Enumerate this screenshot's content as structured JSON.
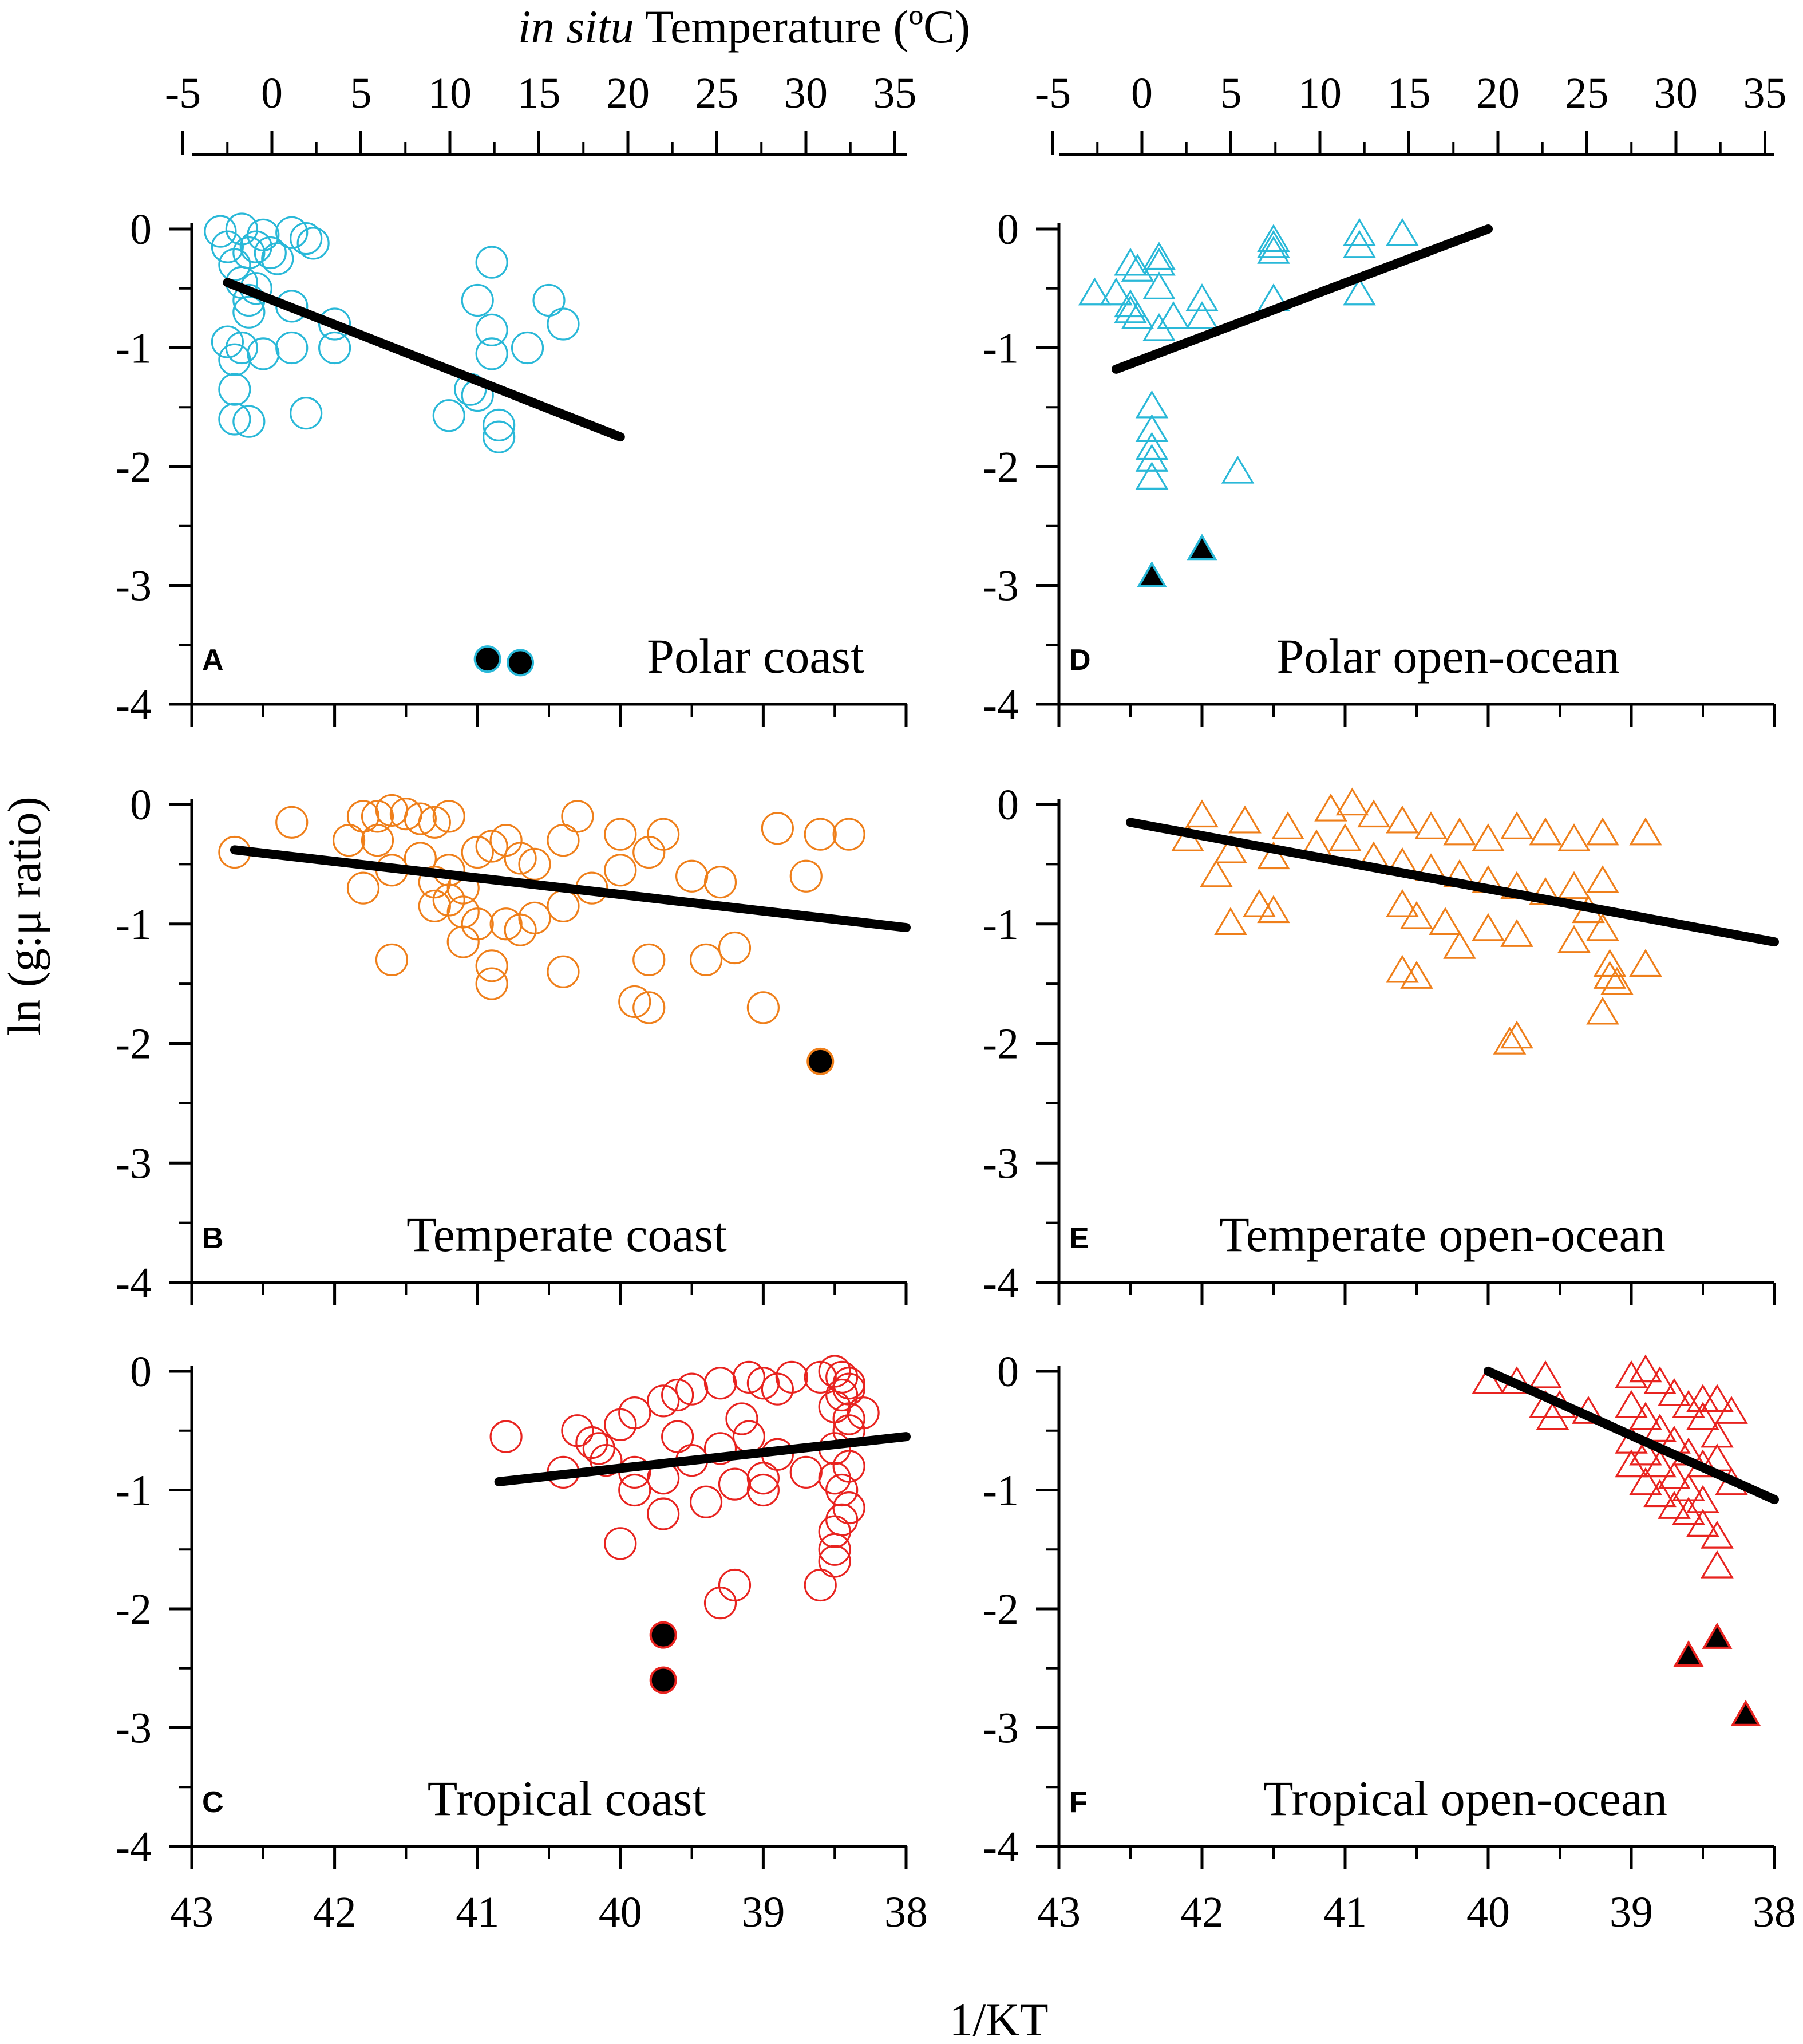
{
  "figure": {
    "top_axis_title_italic": "in situ",
    "top_axis_title_rest": " Temperature (ºC)",
    "y_axis_title": "ln (g:μ ratio)",
    "x_axis_title": "1/KT"
  },
  "colors": {
    "polar": "#29b8d8",
    "temperate": "#ef7f1a",
    "tropical": "#e8231f",
    "regression": "#000000",
    "outlier_fill": "#000000"
  },
  "chart_data": [
    {
      "id": "A",
      "type": "scatter",
      "title": "Polar coast",
      "marker": "circle",
      "group": "polar",
      "ylim": [
        -4,
        0
      ],
      "xlim": [
        43,
        38
      ],
      "points": [
        [
          42.8,
          -0.02
        ],
        [
          42.65,
          0.0
        ],
        [
          42.5,
          -0.05
        ],
        [
          42.3,
          -0.03
        ],
        [
          42.2,
          -0.08
        ],
        [
          42.15,
          -0.12
        ],
        [
          42.75,
          -0.15
        ],
        [
          42.6,
          -0.2
        ],
        [
          42.55,
          -0.15
        ],
        [
          42.4,
          -0.25
        ],
        [
          42.45,
          -0.2
        ],
        [
          42.7,
          -0.3
        ],
        [
          42.65,
          -0.45
        ],
        [
          42.55,
          -0.5
        ],
        [
          42.6,
          -0.6
        ],
        [
          42.3,
          -0.65
        ],
        [
          42.6,
          -0.7
        ],
        [
          42.75,
          -0.95
        ],
        [
          42.65,
          -1.0
        ],
        [
          42.5,
          -1.05
        ],
        [
          42.7,
          -1.1
        ],
        [
          42.3,
          -1.0
        ],
        [
          42.0,
          -0.8
        ],
        [
          42.0,
          -1.0
        ],
        [
          42.7,
          -1.35
        ],
        [
          42.7,
          -1.6
        ],
        [
          42.6,
          -1.62
        ],
        [
          42.2,
          -1.55
        ],
        [
          40.9,
          -0.28
        ],
        [
          41.0,
          -0.6
        ],
        [
          40.9,
          -0.85
        ],
        [
          40.9,
          -1.05
        ],
        [
          40.65,
          -1.0
        ],
        [
          40.5,
          -0.6
        ],
        [
          40.4,
          -0.8
        ],
        [
          41.2,
          -1.57
        ],
        [
          41.05,
          -1.35
        ],
        [
          41.0,
          -1.4
        ],
        [
          40.85,
          -1.65
        ],
        [
          40.85,
          -1.75
        ]
      ],
      "outliers": [
        [
          40.93,
          -3.62
        ],
        [
          40.7,
          -3.65
        ]
      ],
      "fit": [
        [
          42.75,
          -0.45
        ],
        [
          40.0,
          -1.75
        ]
      ]
    },
    {
      "id": "D",
      "type": "scatter",
      "title": "Polar open-ocean",
      "marker": "triangle",
      "group": "polar",
      "ylim": [
        -4,
        0
      ],
      "xlim": [
        43,
        38
      ],
      "points": [
        [
          42.75,
          -0.55
        ],
        [
          42.6,
          -0.55
        ],
        [
          42.5,
          -0.3
        ],
        [
          42.45,
          -0.35
        ],
        [
          42.3,
          -0.25
        ],
        [
          42.3,
          -0.3
        ],
        [
          42.5,
          -0.7
        ],
        [
          42.45,
          -0.75
        ],
        [
          42.5,
          -0.65
        ],
        [
          42.3,
          -0.5
        ],
        [
          42.2,
          -0.75
        ],
        [
          42.0,
          -0.6
        ],
        [
          42.0,
          -0.75
        ],
        [
          42.3,
          -0.85
        ],
        [
          41.5,
          -0.1
        ],
        [
          41.5,
          -0.15
        ],
        [
          41.5,
          -0.2
        ],
        [
          41.5,
          -0.6
        ],
        [
          40.9,
          -0.05
        ],
        [
          40.9,
          -0.15
        ],
        [
          40.6,
          -0.05
        ],
        [
          40.9,
          -0.55
        ],
        [
          42.35,
          -1.5
        ],
        [
          42.35,
          -1.7
        ],
        [
          42.35,
          -1.85
        ],
        [
          42.35,
          -1.95
        ],
        [
          42.35,
          -2.1
        ],
        [
          41.75,
          -2.05
        ]
      ],
      "outliers": [
        [
          42.35,
          -2.93
        ],
        [
          42.0,
          -2.7
        ]
      ],
      "fit": [
        [
          42.6,
          -1.18
        ],
        [
          40.0,
          0.0
        ]
      ]
    },
    {
      "id": "B",
      "type": "scatter",
      "title": "Temperate coast",
      "marker": "circle",
      "group": "temperate",
      "ylim": [
        -4,
        0
      ],
      "xlim": [
        43,
        38
      ],
      "points": [
        [
          42.7,
          -0.4
        ],
        [
          42.3,
          -0.15
        ],
        [
          41.9,
          -0.3
        ],
        [
          41.8,
          -0.1
        ],
        [
          41.7,
          -0.1
        ],
        [
          41.6,
          -0.05
        ],
        [
          41.5,
          -0.08
        ],
        [
          41.4,
          -0.12
        ],
        [
          41.3,
          -0.15
        ],
        [
          41.2,
          -0.1
        ],
        [
          41.7,
          -0.3
        ],
        [
          41.6,
          -0.55
        ],
        [
          41.8,
          -0.7
        ],
        [
          41.4,
          -0.45
        ],
        [
          41.3,
          -0.65
        ],
        [
          41.2,
          -0.55
        ],
        [
          41.1,
          -0.7
        ],
        [
          41.0,
          -0.4
        ],
        [
          40.9,
          -0.35
        ],
        [
          40.8,
          -0.3
        ],
        [
          40.7,
          -0.45
        ],
        [
          40.6,
          -0.5
        ],
        [
          40.4,
          -0.3
        ],
        [
          40.3,
          -0.1
        ],
        [
          40.0,
          -0.25
        ],
        [
          39.8,
          -0.4
        ],
        [
          39.7,
          -0.25
        ],
        [
          39.5,
          -0.6
        ],
        [
          39.3,
          -0.65
        ],
        [
          38.9,
          -0.2
        ],
        [
          38.6,
          -0.25
        ],
        [
          38.4,
          -0.25
        ],
        [
          38.7,
          -0.6
        ],
        [
          41.3,
          -0.85
        ],
        [
          41.1,
          -0.9
        ],
        [
          41.0,
          -1.0
        ],
        [
          40.8,
          -1.0
        ],
        [
          40.4,
          -0.85
        ],
        [
          40.2,
          -0.7
        ],
        [
          40.0,
          -0.55
        ],
        [
          39.8,
          -1.3
        ],
        [
          39.4,
          -1.3
        ],
        [
          39.2,
          -1.2
        ],
        [
          41.6,
          -1.3
        ],
        [
          41.1,
          -1.15
        ],
        [
          40.9,
          -1.35
        ],
        [
          40.9,
          -1.5
        ],
        [
          40.4,
          -1.4
        ],
        [
          39.9,
          -1.65
        ],
        [
          39.8,
          -1.7
        ],
        [
          39.0,
          -1.7
        ],
        [
          41.2,
          -0.8
        ],
        [
          40.7,
          -1.05
        ],
        [
          40.6,
          -0.95
        ]
      ],
      "outliers": [
        [
          38.6,
          -2.15
        ]
      ],
      "fit": [
        [
          42.7,
          -0.38
        ],
        [
          38.0,
          -1.03
        ]
      ]
    },
    {
      "id": "E",
      "type": "scatter",
      "title": "Temperate open-ocean",
      "marker": "triangle",
      "group": "temperate",
      "ylim": [
        -4,
        0
      ],
      "xlim": [
        43,
        38
      ],
      "points": [
        [
          42.0,
          -0.1
        ],
        [
          41.7,
          -0.15
        ],
        [
          41.4,
          -0.2
        ],
        [
          41.1,
          -0.05
        ],
        [
          40.95,
          0.0
        ],
        [
          40.8,
          -0.1
        ],
        [
          40.6,
          -0.15
        ],
        [
          40.4,
          -0.2
        ],
        [
          40.2,
          -0.25
        ],
        [
          40.0,
          -0.3
        ],
        [
          39.8,
          -0.2
        ],
        [
          39.6,
          -0.25
        ],
        [
          39.4,
          -0.3
        ],
        [
          39.2,
          -0.25
        ],
        [
          38.9,
          -0.25
        ],
        [
          42.1,
          -0.3
        ],
        [
          41.8,
          -0.4
        ],
        [
          41.5,
          -0.45
        ],
        [
          41.2,
          -0.35
        ],
        [
          41.0,
          -0.3
        ],
        [
          40.8,
          -0.45
        ],
        [
          40.6,
          -0.5
        ],
        [
          40.4,
          -0.55
        ],
        [
          40.2,
          -0.6
        ],
        [
          40.0,
          -0.65
        ],
        [
          39.8,
          -0.7
        ],
        [
          39.6,
          -0.75
        ],
        [
          39.4,
          -0.7
        ],
        [
          39.2,
          -0.65
        ],
        [
          41.9,
          -0.6
        ],
        [
          41.6,
          -0.85
        ],
        [
          41.5,
          -0.9
        ],
        [
          41.8,
          -1.0
        ],
        [
          40.6,
          -0.85
        ],
        [
          40.5,
          -0.95
        ],
        [
          40.3,
          -1.0
        ],
        [
          40.0,
          -1.05
        ],
        [
          39.8,
          -1.1
        ],
        [
          39.4,
          -1.15
        ],
        [
          39.3,
          -0.9
        ],
        [
          39.2,
          -1.05
        ],
        [
          39.15,
          -1.35
        ],
        [
          39.15,
          -1.45
        ],
        [
          39.1,
          -1.5
        ],
        [
          38.9,
          -1.35
        ],
        [
          39.2,
          -1.75
        ],
        [
          40.5,
          -1.45
        ],
        [
          40.6,
          -1.4
        ],
        [
          40.2,
          -1.2
        ],
        [
          39.8,
          -1.95
        ],
        [
          39.85,
          -2.0
        ]
      ],
      "outliers": [],
      "fit": [
        [
          42.5,
          -0.15
        ],
        [
          38.0,
          -1.15
        ]
      ]
    },
    {
      "id": "C",
      "type": "scatter",
      "title": "Tropical coast",
      "marker": "circle",
      "group": "tropical",
      "ylim": [
        -4,
        0
      ],
      "xlim": [
        43,
        38
      ],
      "points": [
        [
          40.8,
          -0.55
        ],
        [
          40.3,
          -0.5
        ],
        [
          40.2,
          -0.6
        ],
        [
          40.0,
          -0.45
        ],
        [
          39.9,
          -0.35
        ],
        [
          39.7,
          -0.25
        ],
        [
          39.6,
          -0.2
        ],
        [
          39.5,
          -0.15
        ],
        [
          39.3,
          -0.1
        ],
        [
          39.1,
          -0.05
        ],
        [
          39.0,
          -0.1
        ],
        [
          38.9,
          -0.15
        ],
        [
          38.8,
          -0.05
        ],
        [
          38.6,
          -0.05
        ],
        [
          38.5,
          0.0
        ],
        [
          38.45,
          -0.05
        ],
        [
          38.4,
          -0.1
        ],
        [
          38.4,
          -0.15
        ],
        [
          38.45,
          -0.2
        ],
        [
          38.5,
          -0.3
        ],
        [
          38.4,
          -0.4
        ],
        [
          38.3,
          -0.35
        ],
        [
          38.4,
          -0.5
        ],
        [
          38.5,
          -0.65
        ],
        [
          38.4,
          -0.8
        ],
        [
          38.5,
          -0.9
        ],
        [
          38.45,
          -1.0
        ],
        [
          38.4,
          -1.15
        ],
        [
          38.45,
          -1.25
        ],
        [
          38.5,
          -1.35
        ],
        [
          38.5,
          -1.5
        ],
        [
          38.5,
          -1.6
        ],
        [
          38.6,
          -1.8
        ],
        [
          40.4,
          -0.85
        ],
        [
          40.1,
          -0.75
        ],
        [
          39.9,
          -0.85
        ],
        [
          39.7,
          -0.9
        ],
        [
          39.5,
          -0.75
        ],
        [
          39.3,
          -0.65
        ],
        [
          39.1,
          -0.55
        ],
        [
          38.9,
          -0.7
        ],
        [
          38.7,
          -0.85
        ],
        [
          39.9,
          -1.0
        ],
        [
          39.7,
          -1.2
        ],
        [
          39.4,
          -1.1
        ],
        [
          39.2,
          -0.95
        ],
        [
          39.0,
          -0.9
        ],
        [
          39.0,
          -1.0
        ],
        [
          40.0,
          -1.45
        ],
        [
          39.3,
          -1.95
        ],
        [
          39.2,
          -1.8
        ],
        [
          40.15,
          -0.65
        ],
        [
          39.6,
          -0.55
        ],
        [
          39.15,
          -0.4
        ]
      ],
      "outliers": [
        [
          39.7,
          -2.22
        ],
        [
          39.7,
          -2.6
        ]
      ],
      "fit": [
        [
          40.85,
          -0.93
        ],
        [
          38.0,
          -0.55
        ]
      ]
    },
    {
      "id": "F",
      "type": "scatter",
      "title": "Tropical open-ocean",
      "marker": "triangle",
      "group": "tropical",
      "ylim": [
        -4,
        0
      ],
      "xlim": [
        43,
        38
      ],
      "points": [
        [
          40.0,
          -0.1
        ],
        [
          39.8,
          -0.1
        ],
        [
          39.6,
          -0.05
        ],
        [
          39.5,
          -0.3
        ],
        [
          39.3,
          -0.35
        ],
        [
          39.6,
          -0.3
        ],
        [
          39.55,
          -0.4
        ],
        [
          39.0,
          -0.05
        ],
        [
          38.9,
          0.0
        ],
        [
          38.8,
          -0.1
        ],
        [
          38.7,
          -0.2
        ],
        [
          38.6,
          -0.3
        ],
        [
          38.5,
          -0.25
        ],
        [
          39.0,
          -0.3
        ],
        [
          38.9,
          -0.4
        ],
        [
          38.8,
          -0.5
        ],
        [
          38.7,
          -0.6
        ],
        [
          38.6,
          -0.7
        ],
        [
          38.5,
          -0.8
        ],
        [
          39.0,
          -0.6
        ],
        [
          38.9,
          -0.7
        ],
        [
          38.8,
          -0.8
        ],
        [
          38.7,
          -0.9
        ],
        [
          38.6,
          -1.0
        ],
        [
          38.5,
          -1.1
        ],
        [
          39.0,
          -0.8
        ],
        [
          38.9,
          -0.95
        ],
        [
          38.8,
          -1.05
        ],
        [
          38.7,
          -1.15
        ],
        [
          38.6,
          -1.2
        ],
        [
          38.5,
          -1.3
        ],
        [
          38.4,
          -1.4
        ],
        [
          38.4,
          -1.65
        ],
        [
          38.5,
          -0.4
        ],
        [
          38.4,
          -0.55
        ],
        [
          38.4,
          -0.75
        ],
        [
          38.3,
          -0.95
        ],
        [
          38.3,
          -0.35
        ],
        [
          38.4,
          -0.25
        ]
      ],
      "outliers": [
        [
          38.6,
          -2.4
        ],
        [
          38.4,
          -2.25
        ],
        [
          38.2,
          -2.9
        ]
      ],
      "fit": [
        [
          40.0,
          0.0
        ],
        [
          38.0,
          -1.08
        ]
      ]
    }
  ],
  "top_axis_ticks": [
    "-5",
    "0",
    "5",
    "10",
    "15",
    "20",
    "25",
    "30",
    "35"
  ],
  "bottom_axis_ticks": [
    "43",
    "42",
    "41",
    "40",
    "39",
    "38"
  ],
  "y_axis_ticks": [
    "0",
    "-1",
    "-2",
    "-3",
    "-4"
  ]
}
